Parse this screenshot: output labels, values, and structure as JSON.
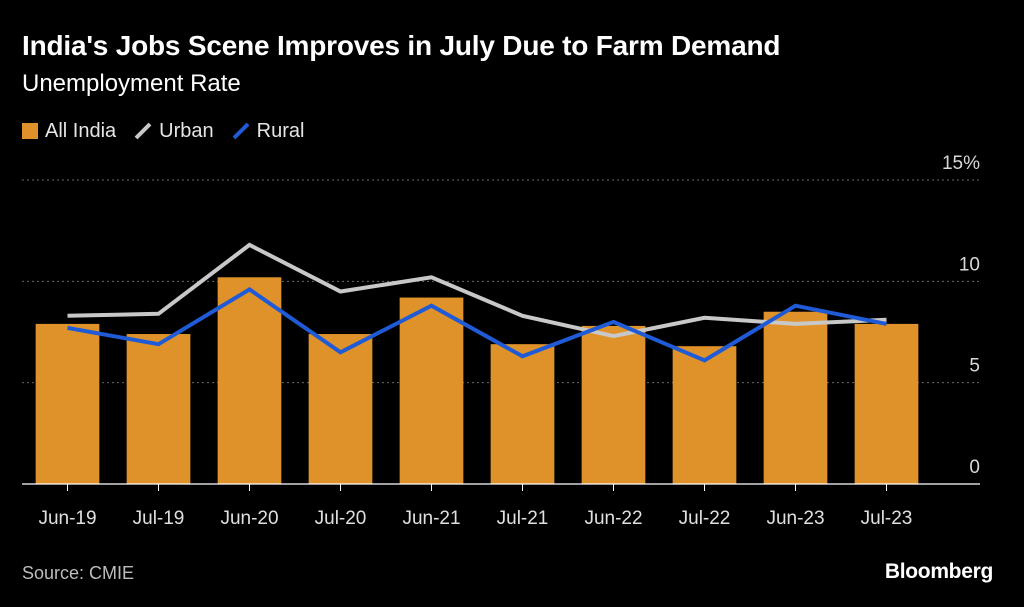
{
  "chart_data": {
    "type": "bar",
    "title": "India's Jobs Scene Improves in July Due to Farm Demand",
    "subtitle": "Unemployment Rate",
    "categories": [
      "Jun-19",
      "Jul-19",
      "Jun-20",
      "Jul-20",
      "Jun-21",
      "Jul-21",
      "Jun-22",
      "Jul-22",
      "Jun-23",
      "Jul-23"
    ],
    "series": [
      {
        "name": "All India",
        "kind": "bar",
        "color": "#e0922a",
        "values": [
          7.9,
          7.4,
          10.2,
          7.4,
          9.2,
          6.9,
          7.8,
          6.8,
          8.5,
          7.9
        ]
      },
      {
        "name": "Urban",
        "kind": "line",
        "color": "#c8c8c8",
        "values": [
          8.3,
          8.4,
          11.8,
          9.5,
          10.2,
          8.3,
          7.3,
          8.2,
          7.9,
          8.1
        ]
      },
      {
        "name": "Rural",
        "kind": "line",
        "color": "#1f5bd6",
        "values": [
          7.7,
          6.9,
          9.6,
          6.5,
          8.8,
          6.3,
          8.0,
          6.1,
          8.8,
          7.9
        ]
      }
    ],
    "ylim": [
      0,
      15
    ],
    "yticks": [
      {
        "value": 0,
        "label": "0"
      },
      {
        "value": 5,
        "label": "5"
      },
      {
        "value": 10,
        "label": "10"
      },
      {
        "value": 15,
        "label": "15%"
      }
    ],
    "xlabel": "",
    "ylabel": "",
    "grid": true,
    "legend_position": "top-left"
  },
  "source": "Source: CMIE",
  "brand": "Bloomberg"
}
